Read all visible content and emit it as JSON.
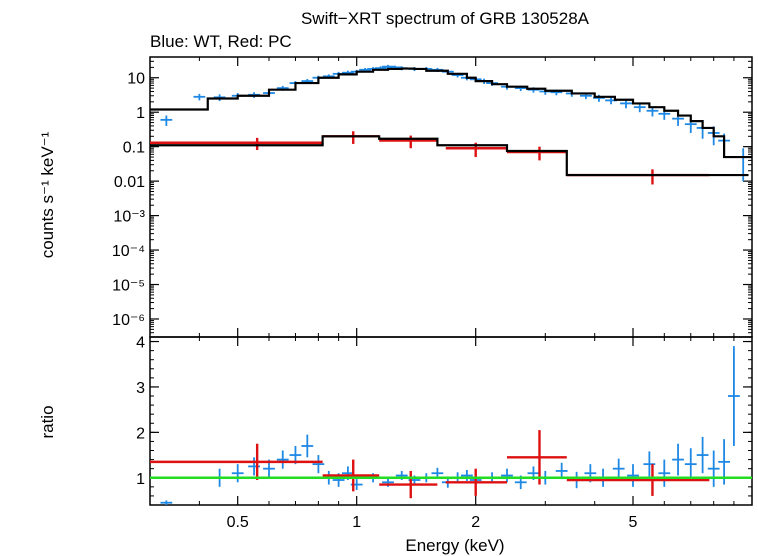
{
  "chart_data": {
    "type": "scatter",
    "title": "Swift−XRT spectrum of GRB 130528A",
    "subtitle": "Blue: WT, Red: PC",
    "xlabel": "Energy (keV)",
    "x_scale": "log",
    "xlim": [
      0.3,
      10
    ],
    "x_ticks": [
      0.5,
      1,
      2,
      5
    ],
    "x_tick_labels": [
      "0.5",
      "1",
      "2",
      "5"
    ],
    "colors": {
      "wt": "#1e88e5",
      "pc": "#dd1111",
      "model": "#000000",
      "unity": "#22dd22"
    },
    "panels": [
      {
        "name": "spectrum",
        "ylabel": "counts s⁻¹ keV⁻¹",
        "y_scale": "log",
        "ylim": [
          3e-07,
          40
        ],
        "y_ticks": [
          1e-06,
          1e-05,
          0.0001,
          0.001,
          0.01,
          0.1,
          1,
          10
        ],
        "y_tick_labels": [
          "10⁻⁶",
          "10⁻⁵",
          "10⁻⁴",
          "10⁻³",
          "0.01",
          "0.1",
          "1",
          "10"
        ],
        "series": [
          {
            "name": "WT",
            "type": "errorbar",
            "x": [
              0.33,
              0.4,
              0.45,
              0.5,
              0.55,
              0.6,
              0.65,
              0.7,
              0.75,
              0.8,
              0.85,
              0.9,
              0.95,
              1.0,
              1.05,
              1.1,
              1.15,
              1.2,
              1.25,
              1.3,
              1.4,
              1.5,
              1.6,
              1.7,
              1.8,
              1.9,
              2.0,
              2.1,
              2.2,
              2.4,
              2.6,
              2.8,
              3.0,
              3.2,
              3.5,
              3.8,
              4.1,
              4.4,
              4.8,
              5.2,
              5.6,
              6.0,
              6.5,
              7.0,
              7.5,
              8.0,
              8.5,
              9.5
            ],
            "y": [
              0.6,
              2.8,
              2.7,
              3.0,
              3.2,
              3.6,
              5.0,
              7.0,
              8.0,
              10.0,
              11.0,
              13.0,
              14.0,
              15.0,
              17.0,
              18.0,
              19.0,
              21.0,
              20.0,
              19.0,
              18.0,
              18.0,
              17.0,
              15.0,
              12.0,
              10.0,
              9.0,
              8.0,
              7.0,
              5.5,
              5.0,
              4.5,
              4.0,
              3.8,
              3.5,
              3.0,
              2.6,
              2.2,
              1.8,
              1.4,
              1.1,
              0.9,
              0.65,
              0.45,
              0.35,
              0.25,
              0.15,
              0.05
            ],
            "yerr": [
              0.2,
              0.6,
              0.6,
              0.6,
              0.6,
              0.7,
              0.8,
              1.0,
              1.2,
              1.5,
              1.5,
              1.8,
              2.0,
              2.0,
              2.2,
              2.4,
              2.5,
              2.6,
              2.5,
              2.5,
              2.4,
              2.4,
              2.3,
              2.0,
              1.8,
              1.6,
              1.5,
              1.4,
              1.2,
              1.0,
              0.9,
              0.8,
              0.8,
              0.7,
              0.7,
              0.6,
              0.6,
              0.5,
              0.5,
              0.4,
              0.35,
              0.3,
              0.25,
              0.2,
              0.18,
              0.14,
              0.09,
              0.04
            ]
          },
          {
            "name": "PC",
            "type": "errorbar",
            "x": [
              0.56,
              0.98,
              1.37,
              2.0,
              2.9,
              5.6
            ],
            "xerr_lo": [
              0.26,
              0.16,
              0.23,
              0.32,
              0.5,
              2.2
            ],
            "xerr_hi": [
              0.26,
              0.16,
              0.23,
              0.4,
              0.5,
              2.2
            ],
            "y": [
              0.13,
              0.2,
              0.15,
              0.09,
              0.07,
              0.015
            ],
            "yerr": [
              0.05,
              0.08,
              0.06,
              0.04,
              0.03,
              0.007
            ]
          },
          {
            "name": "WT model",
            "type": "step",
            "x": [
              0.3,
              0.42,
              0.5,
              0.6,
              0.7,
              0.8,
              0.9,
              1.0,
              1.1,
              1.2,
              1.3,
              1.4,
              1.5,
              1.7,
              1.9,
              2.0,
              2.2,
              2.4,
              2.7,
              3.0,
              3.5,
              4.0,
              4.5,
              5.0,
              5.5,
              6.0,
              6.5,
              7.0,
              7.5,
              8.0,
              8.5,
              9.0,
              10.0
            ],
            "y": [
              1.2,
              2.5,
              3.0,
              4.5,
              7.0,
              10.0,
              12.5,
              15.0,
              17.0,
              18.0,
              18.5,
              18.0,
              16.0,
              13.0,
              10.0,
              8.0,
              6.5,
              5.5,
              4.8,
              4.2,
              3.5,
              2.8,
              2.3,
              1.8,
              1.4,
              1.1,
              0.8,
              0.55,
              0.35,
              0.2,
              0.05,
              0.05,
              0.05
            ]
          },
          {
            "name": "PC model",
            "type": "step",
            "x": [
              0.3,
              0.82,
              1.14,
              1.6,
              2.4,
              3.4,
              9.8
            ],
            "y": [
              0.11,
              0.2,
              0.17,
              0.11,
              0.075,
              0.015,
              0.015
            ]
          }
        ]
      },
      {
        "name": "ratio",
        "ylabel": "ratio",
        "y_scale": "linear",
        "ylim": [
          0.4,
          4.1
        ],
        "y_ticks": [
          1,
          2,
          3,
          4
        ],
        "y_tick_labels": [
          "1",
          "2",
          "3",
          "4"
        ],
        "series": [
          {
            "name": "WT ratio",
            "type": "errorbar",
            "x": [
              0.33,
              0.45,
              0.5,
              0.55,
              0.6,
              0.65,
              0.7,
              0.75,
              0.8,
              0.85,
              0.9,
              0.95,
              1.0,
              1.1,
              1.2,
              1.3,
              1.4,
              1.5,
              1.6,
              1.7,
              1.8,
              1.9,
              2.0,
              2.2,
              2.4,
              2.6,
              2.8,
              3.0,
              3.3,
              3.6,
              3.9,
              4.2,
              4.6,
              5.0,
              5.5,
              6.0,
              6.5,
              7.0,
              7.5,
              8.0,
              8.5,
              9.0
            ],
            "y": [
              0.45,
              1.0,
              1.1,
              1.25,
              1.2,
              1.4,
              1.5,
              1.7,
              1.3,
              1.0,
              0.95,
              1.1,
              0.85,
              1.0,
              0.9,
              1.05,
              0.95,
              1.0,
              1.1,
              0.9,
              1.0,
              1.05,
              0.95,
              1.0,
              1.05,
              0.9,
              1.1,
              1.0,
              1.15,
              0.95,
              1.1,
              1.0,
              1.2,
              1.05,
              1.3,
              1.1,
              1.4,
              1.3,
              1.5,
              1.2,
              1.35,
              2.8
            ],
            "yerr": [
              0.05,
              0.2,
              0.2,
              0.2,
              0.2,
              0.2,
              0.2,
              0.25,
              0.2,
              0.15,
              0.15,
              0.15,
              0.12,
              0.1,
              0.1,
              0.1,
              0.1,
              0.1,
              0.12,
              0.12,
              0.12,
              0.12,
              0.12,
              0.12,
              0.15,
              0.15,
              0.15,
              0.15,
              0.18,
              0.18,
              0.2,
              0.2,
              0.22,
              0.25,
              0.28,
              0.3,
              0.35,
              0.35,
              0.4,
              0.4,
              0.5,
              1.1
            ]
          },
          {
            "name": "PC ratio",
            "type": "errorbar",
            "x": [
              0.56,
              0.98,
              1.37,
              2.0,
              2.9,
              5.6
            ],
            "xerr_lo": [
              0.26,
              0.16,
              0.23,
              0.32,
              0.5,
              2.2
            ],
            "xerr_hi": [
              0.26,
              0.16,
              0.23,
              0.4,
              0.5,
              2.2
            ],
            "y": [
              1.35,
              1.05,
              0.85,
              0.9,
              1.45,
              0.95
            ],
            "yerr": [
              0.4,
              0.35,
              0.3,
              0.3,
              0.6,
              0.35
            ]
          },
          {
            "name": "unity",
            "type": "line",
            "y": 1.0
          }
        ]
      }
    ]
  }
}
